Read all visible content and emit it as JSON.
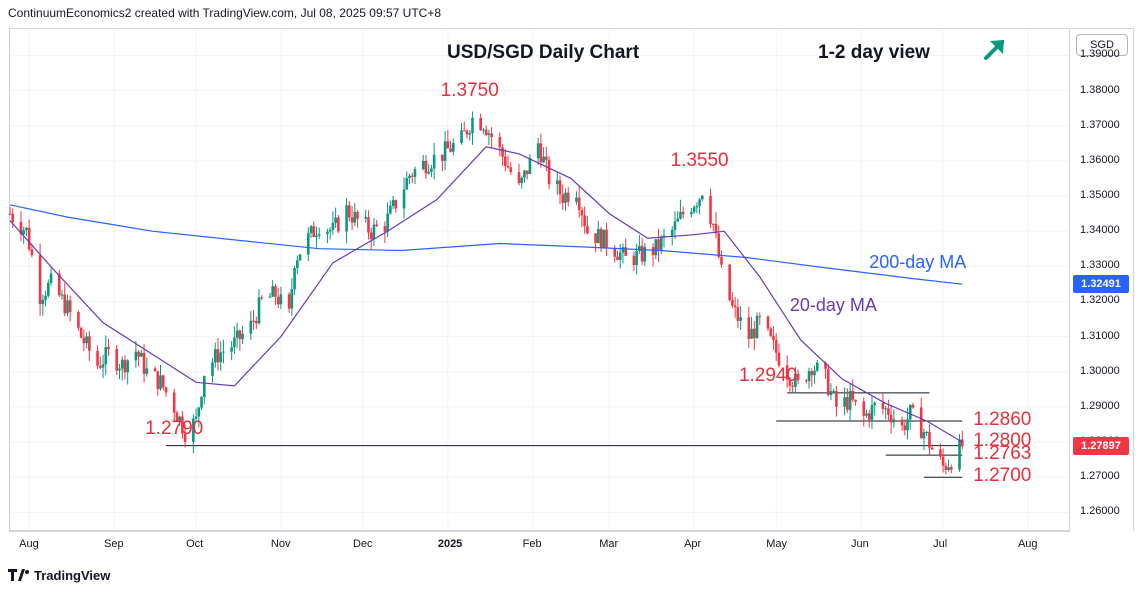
{
  "header": {
    "text": "ContinuumEconomics2 created with TradingView.com, Jul 08, 2025 09:57 UTC+8"
  },
  "currency_label": "SGD",
  "footer": {
    "brand": "TradingView"
  },
  "colors": {
    "bull": "#089981",
    "bear": "#f23645",
    "ma20": "#673ab7",
    "ma200": "#2962ff",
    "annotation": "#e5303d",
    "arrow": "#089981"
  },
  "chart_data": {
    "type": "candlestick",
    "title": "USD/SGD Daily Chart",
    "subtitle": "1-2 day view",
    "view_arrow": "arrow-up-right-icon",
    "ylim": [
      1.255,
      1.3975
    ],
    "y_ticks": [
      "1.26000",
      "1.27000",
      "1.28000",
      "1.29000",
      "1.30000",
      "1.31000",
      "1.32000",
      "1.33000",
      "1.34000",
      "1.35000",
      "1.36000",
      "1.37000",
      "1.38000",
      "1.39000"
    ],
    "x_ticks": [
      "Aug",
      "Sep",
      "Oct",
      "Nov",
      "Dec",
      "2025",
      "Feb",
      "Mar",
      "Apr",
      "May",
      "Jun",
      "Jul",
      "Aug"
    ],
    "bold_x_tick": "2025",
    "x_tick_dates": [
      "2024-08-01",
      "2024-09-01",
      "2024-10-01",
      "2024-11-01",
      "2024-12-01",
      "2025-01-01",
      "2025-02-01",
      "2025-03-01",
      "2025-04-01",
      "2025-05-01",
      "2025-06-01",
      "2025-07-01",
      "2025-08-01"
    ],
    "date_range": [
      "2024-07-25",
      "2025-08-16"
    ],
    "last_price": "1.27897",
    "ma200_last": "1.32491",
    "close_path": [
      [
        "2024-07-25",
        1.345
      ],
      [
        "2024-07-31",
        1.34
      ],
      [
        "2024-08-05",
        1.322
      ],
      [
        "2024-08-09",
        1.325
      ],
      [
        "2024-08-15",
        1.318
      ],
      [
        "2024-08-20",
        1.31
      ],
      [
        "2024-08-26",
        1.302
      ],
      [
        "2024-08-30",
        1.305
      ],
      [
        "2024-09-04",
        1.302
      ],
      [
        "2024-09-09",
        1.306
      ],
      [
        "2024-09-13",
        1.3
      ],
      [
        "2024-09-18",
        1.297
      ],
      [
        "2024-09-23",
        1.29
      ],
      [
        "2024-09-27",
        1.283
      ],
      [
        "2024-10-01",
        1.286
      ],
      [
        "2024-10-04",
        1.3
      ],
      [
        "2024-10-09",
        1.305
      ],
      [
        "2024-10-15",
        1.308
      ],
      [
        "2024-10-21",
        1.313
      ],
      [
        "2024-10-25",
        1.32
      ],
      [
        "2024-10-30",
        1.322
      ],
      [
        "2024-11-04",
        1.316
      ],
      [
        "2024-11-06",
        1.332
      ],
      [
        "2024-11-11",
        1.338
      ],
      [
        "2024-11-15",
        1.342
      ],
      [
        "2024-11-20",
        1.34
      ],
      [
        "2024-11-25",
        1.346
      ],
      [
        "2024-11-29",
        1.343
      ],
      [
        "2024-12-04",
        1.34
      ],
      [
        "2024-12-09",
        1.342
      ],
      [
        "2024-12-13",
        1.348
      ],
      [
        "2024-12-18",
        1.356
      ],
      [
        "2024-12-23",
        1.359
      ],
      [
        "2024-12-30",
        1.362
      ],
      [
        "2025-01-06",
        1.366
      ],
      [
        "2025-01-10",
        1.372
      ],
      [
        "2025-01-14",
        1.371
      ],
      [
        "2025-01-17",
        1.367
      ],
      [
        "2025-01-22",
        1.36
      ],
      [
        "2025-01-27",
        1.352
      ],
      [
        "2025-02-03",
        1.365
      ],
      [
        "2025-02-07",
        1.355
      ],
      [
        "2025-02-12",
        1.35
      ],
      [
        "2025-02-17",
        1.352
      ],
      [
        "2025-02-21",
        1.34
      ],
      [
        "2025-02-26",
        1.338
      ],
      [
        "2025-03-03",
        1.335
      ],
      [
        "2025-03-07",
        1.332
      ],
      [
        "2025-03-12",
        1.333
      ],
      [
        "2025-03-18",
        1.335
      ],
      [
        "2025-03-24",
        1.34
      ],
      [
        "2025-03-28",
        1.345
      ],
      [
        "2025-04-03",
        1.35
      ],
      [
        "2025-04-04",
        1.352
      ],
      [
        "2025-04-08",
        1.342
      ],
      [
        "2025-04-11",
        1.328
      ],
      [
        "2025-04-15",
        1.318
      ],
      [
        "2025-04-21",
        1.31
      ],
      [
        "2025-04-25",
        1.314
      ],
      [
        "2025-04-30",
        1.307
      ],
      [
        "2025-05-05",
        1.3
      ],
      [
        "2025-05-09",
        1.296
      ],
      [
        "2025-05-14",
        1.302
      ],
      [
        "2025-05-19",
        1.298
      ],
      [
        "2025-05-23",
        1.29
      ],
      [
        "2025-05-28",
        1.292
      ],
      [
        "2025-06-02",
        1.287
      ],
      [
        "2025-06-06",
        1.29
      ],
      [
        "2025-06-11",
        1.289
      ],
      [
        "2025-06-16",
        1.284
      ],
      [
        "2025-06-19",
        1.288
      ],
      [
        "2025-06-24",
        1.283
      ],
      [
        "2025-06-27",
        1.278
      ],
      [
        "2025-07-01",
        1.273
      ],
      [
        "2025-07-04",
        1.275
      ],
      [
        "2025-07-08",
        1.279
      ]
    ],
    "ma20_path": [
      [
        "2024-07-25",
        1.343
      ],
      [
        "2024-08-10",
        1.329
      ],
      [
        "2024-08-28",
        1.314
      ],
      [
        "2024-09-15",
        1.305
      ],
      [
        "2024-10-01",
        1.297
      ],
      [
        "2024-10-15",
        1.296
      ],
      [
        "2024-11-01",
        1.31
      ],
      [
        "2024-11-20",
        1.331
      ],
      [
        "2024-12-10",
        1.34
      ],
      [
        "2024-12-28",
        1.349
      ],
      [
        "2025-01-15",
        1.364
      ],
      [
        "2025-01-27",
        1.362
      ],
      [
        "2025-02-15",
        1.355
      ],
      [
        "2025-03-01",
        1.345
      ],
      [
        "2025-03-15",
        1.338
      ],
      [
        "2025-04-01",
        1.339
      ],
      [
        "2025-04-12",
        1.34
      ],
      [
        "2025-04-25",
        1.327
      ],
      [
        "2025-05-10",
        1.309
      ],
      [
        "2025-05-25",
        1.298
      ],
      [
        "2025-06-10",
        1.291
      ],
      [
        "2025-06-25",
        1.286
      ],
      [
        "2025-07-08",
        1.28
      ]
    ],
    "ma200_path": [
      [
        "2024-07-25",
        1.3475
      ],
      [
        "2024-08-15",
        1.344
      ],
      [
        "2024-09-15",
        1.34
      ],
      [
        "2024-10-15",
        1.3375
      ],
      [
        "2024-11-15",
        1.335
      ],
      [
        "2024-12-15",
        1.3345
      ],
      [
        "2025-01-20",
        1.3365
      ],
      [
        "2025-02-20",
        1.3355
      ],
      [
        "2025-03-20",
        1.3345
      ],
      [
        "2025-04-20",
        1.3325
      ],
      [
        "2025-05-20",
        1.3295
      ],
      [
        "2025-06-20",
        1.3265
      ],
      [
        "2025-07-08",
        1.3249
      ]
    ],
    "annotations": [
      {
        "label": "1.3750",
        "date": "2025-01-13",
        "value": 1.375
      },
      {
        "label": "1.3550",
        "date": "2025-04-07",
        "value": 1.355
      },
      {
        "label": "1.2940",
        "date": "2025-05-02",
        "value": 1.294
      },
      {
        "label": "1.2790",
        "date": "2024-09-27",
        "value": 1.279
      },
      {
        "label": "1.2860",
        "date": "2025-07-12",
        "value": 1.286
      },
      {
        "label": "1.2800",
        "date": "2025-07-12",
        "value": 1.28
      },
      {
        "label": "1.2763",
        "date": "2025-07-12",
        "value": 1.2763
      },
      {
        "label": "1.2700",
        "date": "2025-07-12",
        "value": 1.27
      }
    ],
    "levels": [
      {
        "value": 1.279,
        "from": "2024-09-20",
        "to": "2025-07-08"
      },
      {
        "value": 1.294,
        "from": "2025-05-05",
        "to": "2025-06-26"
      },
      {
        "value": 1.286,
        "from": "2025-05-01",
        "to": "2025-07-08"
      },
      {
        "value": 1.2763,
        "from": "2025-06-10",
        "to": "2025-07-08"
      },
      {
        "value": 1.27,
        "from": "2025-06-24",
        "to": "2025-07-08"
      }
    ],
    "ma_labels": [
      {
        "label": "200-day MA",
        "date": "2025-06-04",
        "value": 1.3308
      },
      {
        "label": "20-day MA",
        "date": "2025-05-06",
        "value": 1.3185
      }
    ]
  }
}
